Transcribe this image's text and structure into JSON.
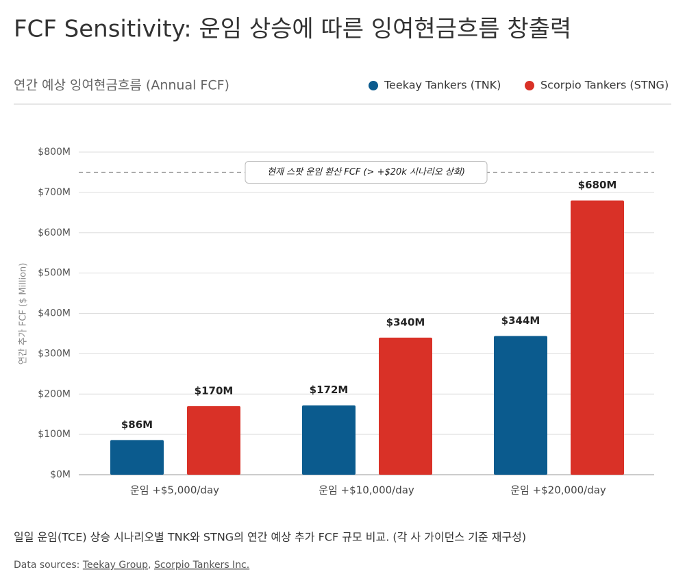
{
  "header": {
    "title": "FCF Sensitivity: 운임 상승에 따른 잉여현금흐름 창출력"
  },
  "chart_data": {
    "type": "bar",
    "subtitle": "연간 예상 잉여현금흐름 (Annual FCF)",
    "ylabel": "연간 추가 FCF ($ Million)",
    "categories": [
      "운임 +$5,000/day",
      "운임 +$10,000/day",
      "운임 +$20,000/day"
    ],
    "series": [
      {
        "name": "Teekay Tankers (TNK)",
        "color": "#0b5b8e",
        "values": [
          86,
          172,
          344
        ],
        "value_labels": [
          "$86M",
          "$172M",
          "$344M"
        ]
      },
      {
        "name": "Scorpio Tankers (STNG)",
        "color": "#d93127",
        "values": [
          170,
          340,
          680
        ],
        "value_labels": [
          "$170M",
          "$340M",
          "$680M"
        ]
      }
    ],
    "ylim": [
      0,
      800
    ],
    "yticks": [
      {
        "value": 0,
        "label": "$0M"
      },
      {
        "value": 100,
        "label": "$100M"
      },
      {
        "value": 200,
        "label": "$200M"
      },
      {
        "value": 300,
        "label": "$300M"
      },
      {
        "value": 400,
        "label": "$400M"
      },
      {
        "value": 500,
        "label": "$500M"
      },
      {
        "value": 600,
        "label": "$600M"
      },
      {
        "value": 700,
        "label": "$700M"
      },
      {
        "value": 800,
        "label": "$800M"
      }
    ],
    "grid": true,
    "legend": "top-right",
    "reference_line": {
      "value": 750,
      "label": "현재 스팟 운임 환산 FCF (> +$20k 시나리오 상회)"
    }
  },
  "footer": {
    "caption": "일일 운임(TCE) 상승 시나리오별 TNK와 STNG의 연간 예상 추가 FCF 규모 비교. (각 사 가이던스 기준 재구성)",
    "sources_label": "Data sources:",
    "separator": ",",
    "sources": [
      "Teekay Group",
      "Scorpio Tankers Inc."
    ]
  }
}
